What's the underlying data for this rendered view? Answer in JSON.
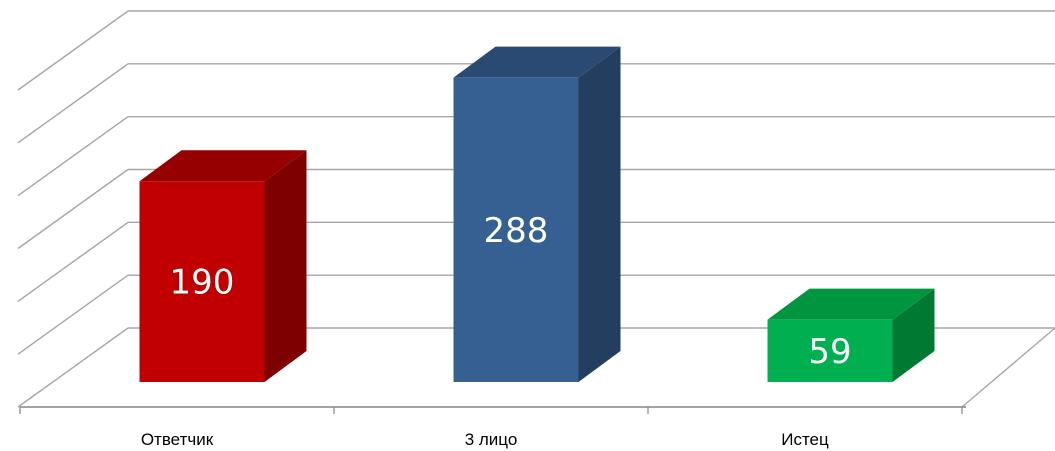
{
  "chart_data": {
    "type": "bar",
    "categories": [
      "Ответчик",
      "3 лицо",
      "Истец"
    ],
    "values": [
      190,
      288,
      59
    ],
    "colors": [
      "#C00000",
      "#366092",
      "#00B050"
    ],
    "side_colors": [
      "#7F0000",
      "#233E5E",
      "#007A33"
    ],
    "top_colors": [
      "#960000",
      "#2A4A73",
      "#009640"
    ],
    "title": "",
    "xlabel": "",
    "ylabel": "",
    "ylim": [
      0,
      300
    ],
    "grid": true,
    "legend": "none",
    "style": "3d-column"
  }
}
